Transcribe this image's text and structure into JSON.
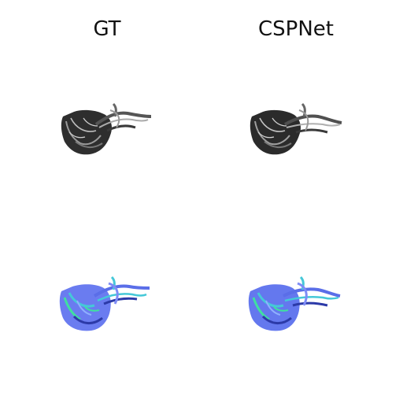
{
  "columns": {
    "left_title": "GT",
    "right_title": "CSPNet"
  },
  "colors": {
    "gray_dark": "#2a2a2a",
    "gray_mid": "#7a7a7a",
    "gray_light": "#cfcfcf",
    "color_blue": "#6a7cf0",
    "color_cyan": "#45c8d8",
    "color_green": "#3fe0a0",
    "color_navy": "#2c3aa8"
  },
  "panels": [
    {
      "id": "gt-gray",
      "colormap": "gray"
    },
    {
      "id": "pred-gray",
      "colormap": "gray"
    },
    {
      "id": "gt-color",
      "colormap": "cool-rainbow"
    },
    {
      "id": "pred-color",
      "colormap": "cool-rainbow"
    }
  ]
}
